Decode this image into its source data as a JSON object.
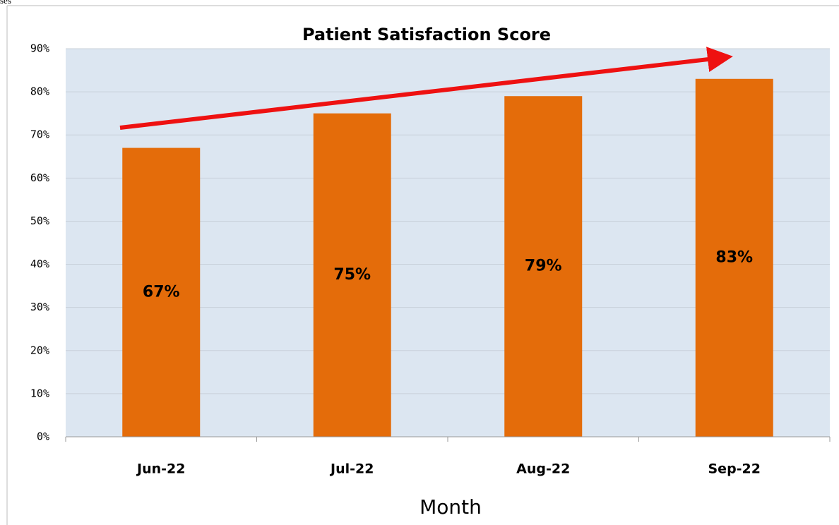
{
  "chart_data": {
    "type": "bar",
    "annotation": "ses",
    "title": "Patient Satisfaction Score",
    "x_label": "Month",
    "categories": [
      "Jun-22",
      "Jul-22",
      "Aug-22",
      "Sep-22"
    ],
    "values": [
      67,
      75,
      79,
      83
    ],
    "value_labels": [
      "67%",
      "75%",
      "79%",
      "83%"
    ],
    "color": "#e46c0a",
    "ylim": [
      0,
      90
    ],
    "yticks": [
      {
        "value": 0,
        "label": "0%"
      },
      {
        "value": 10,
        "label": "10%"
      },
      {
        "value": 20,
        "label": "20%"
      },
      {
        "value": 30,
        "label": "30%"
      },
      {
        "value": 40,
        "label": "40%"
      },
      {
        "value": 50,
        "label": "50%"
      },
      {
        "value": 60,
        "label": "60%"
      },
      {
        "value": 70,
        "label": "70%"
      },
      {
        "value": 80,
        "label": "80%"
      },
      {
        "value": 90,
        "label": "90%"
      }
    ],
    "grid": true
  }
}
